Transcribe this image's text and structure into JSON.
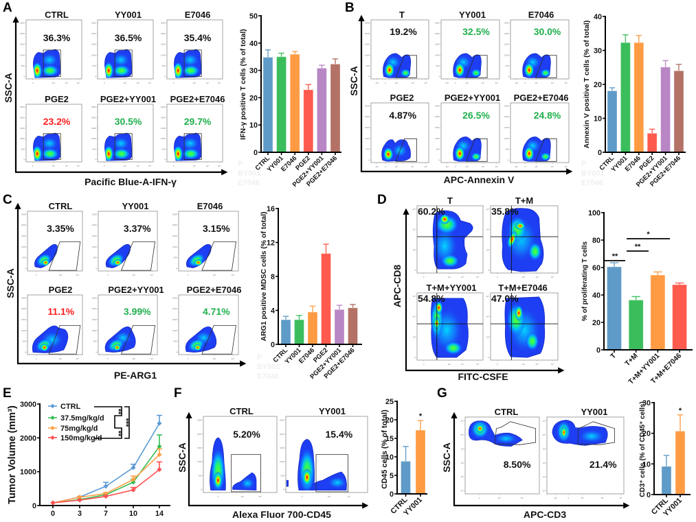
{
  "figure": {
    "panel_labels": [
      "A",
      "B",
      "C",
      "D",
      "E",
      "F",
      "G"
    ]
  },
  "flow_panels": {
    "A": {
      "y_axis_label": "SSC-A",
      "x_axis_label": "Pacific Blue-A-IFN-γ",
      "y_ticks": [
        "250K",
        "200K",
        "150K",
        "100K",
        "50K",
        "0"
      ],
      "x_ticks": [
        "0",
        "10³",
        "10⁴",
        "10⁵"
      ],
      "plots": [
        {
          "title": "CTRL",
          "percent": "36.3%",
          "percent_color": "#111111"
        },
        {
          "title": "YY001",
          "percent": "36.5%",
          "percent_color": "#111111"
        },
        {
          "title": "E7046",
          "percent": "35.4%",
          "percent_color": "#111111"
        },
        {
          "title": "PGE2",
          "percent": "23.2%",
          "percent_color": "#ff1e1e"
        },
        {
          "title": "PGE2+YY001",
          "percent": "30.5%",
          "percent_color": "#1fb04c"
        },
        {
          "title": "PGE2+E7046",
          "percent": "29.7%",
          "percent_color": "#1fb04c"
        }
      ]
    },
    "B": {
      "y_axis_label": "SSC-A",
      "x_axis_label": "APC-Annexin V",
      "y_ticks": [
        "250K",
        "200K",
        "150K",
        "100K",
        "50K",
        "0"
      ],
      "x_ticks": [
        "-10³",
        "0",
        "10³",
        "10⁴",
        "10⁵"
      ],
      "plots": [
        {
          "title": "T",
          "percent": "19.2%",
          "percent_color": "#111111"
        },
        {
          "title": "YY001",
          "percent": "32.5%",
          "percent_color": "#1fb04c"
        },
        {
          "title": "E7046",
          "percent": "30.0%",
          "percent_color": "#1fb04c"
        },
        {
          "title": "PGE2",
          "percent": "4.87%",
          "percent_color": "#111111"
        },
        {
          "title": "PGE2+YY001",
          "percent": "26.5%",
          "percent_color": "#1fb04c"
        },
        {
          "title": "PGE2+E7046",
          "percent": "24.8%",
          "percent_color": "#1fb04c"
        }
      ]
    },
    "C": {
      "y_axis_label": "SSC-A",
      "x_axis_label": "PE-ARG1",
      "y_ticks": [
        "250K",
        "200K",
        "150K",
        "100K",
        "50K",
        "0"
      ],
      "x_ticks": [
        "0",
        "10³",
        "10⁴"
      ],
      "plots": [
        {
          "title": "CTRL",
          "percent": "3.35%",
          "percent_color": "#111111"
        },
        {
          "title": "YY001",
          "percent": "3.37%",
          "percent_color": "#111111"
        },
        {
          "title": "E7046",
          "percent": "3.15%",
          "percent_color": "#111111"
        },
        {
          "title": "PGE2",
          "percent": "11.1%",
          "percent_color": "#ff1e1e"
        },
        {
          "title": "PGE2+YY001",
          "percent": "3.99%",
          "percent_color": "#1fb04c"
        },
        {
          "title": "PGE2+E7046",
          "percent": "4.71%",
          "percent_color": "#1fb04c"
        }
      ]
    },
    "D": {
      "y_axis_label": "APC-CD8",
      "x_axis_label": "FITC-CSFE",
      "y_ticks": [
        "10⁵",
        "10⁴",
        "10³",
        "0"
      ],
      "x_ticks": [
        "0",
        "10³",
        "10⁴",
        "10⁵"
      ],
      "plots": [
        {
          "title": "T",
          "percent": "60.2%",
          "percent_color": "#111111"
        },
        {
          "title": "T+M",
          "percent": "35.8%",
          "percent_color": "#111111"
        },
        {
          "title": "T+M+YY001",
          "percent": "54.8%",
          "percent_color": "#111111"
        },
        {
          "title": "T+M+E7046",
          "percent": "47.0%",
          "percent_color": "#111111"
        }
      ]
    },
    "F": {
      "y_axis_label": "SSC-A",
      "x_axis_label": "Alexa Fluor 700-CD45",
      "y_ticks": [
        "250K",
        "200K",
        "150K",
        "100K",
        "50K",
        "0"
      ],
      "x_ticks": [
        "0",
        "10³",
        "10⁴"
      ],
      "plots": [
        {
          "title": "CTRL",
          "percent": "5.20%",
          "percent_color": "#111111"
        },
        {
          "title": "YY001",
          "percent": "15.4%",
          "percent_color": "#111111"
        }
      ]
    },
    "G": {
      "y_axis_label": "SSC-A",
      "x_axis_label": "APC-CD3",
      "y_ticks": [
        "10⁵",
        "10⁴",
        "10³",
        "10²",
        "10¹",
        "10⁰"
      ],
      "x_ticks": [
        "0",
        "10³",
        "10⁴"
      ],
      "plots": [
        {
          "title": "CTRL",
          "percent": "8.50%",
          "percent_color": "#111111",
          "x_ticks": [
            "0",
            "10³",
            "10⁴"
          ]
        },
        {
          "title": "YY001",
          "percent": "21.4%",
          "percent_color": "#111111",
          "x_ticks": [
            "-10³",
            "0",
            "10³",
            "10⁴",
            "10⁵"
          ]
        }
      ]
    }
  },
  "faint_rows": [
    "P",
    "BY001",
    "E7046"
  ],
  "chart_data": [
    {
      "panel": "A",
      "type": "bar",
      "title": "",
      "xlabel": "",
      "ylabel": "IFN-γ positive T cells (% of total)",
      "categories": [
        "CTRL",
        "YY001",
        "E7046",
        "PGE2",
        "PGE2+YY001",
        "PGE2+E7046"
      ],
      "values": [
        34.8,
        35.0,
        35.9,
        22.9,
        30.8,
        32.3
      ],
      "errors": [
        2.7,
        1.3,
        1.0,
        1.9,
        1.1,
        1.9
      ],
      "colors": [
        "#5f9bc8",
        "#3bbd5c",
        "#ff9b43",
        "#ff5a4e",
        "#b886c4",
        "#b37265"
      ],
      "ylim": [
        0,
        50
      ],
      "yticks": [
        0,
        10,
        20,
        30,
        40,
        50
      ],
      "grid": false,
      "legend": "none"
    },
    {
      "panel": "B",
      "type": "bar",
      "title": "",
      "xlabel": "",
      "ylabel": "Annexin V positive T cells (% of total)",
      "categories": [
        "CTRL",
        "YY001",
        "E7046",
        "PGE2",
        "PGE2+YY001",
        "PGE2+E7046"
      ],
      "values": [
        18.1,
        32.3,
        32.3,
        5.6,
        25.1,
        24.0
      ],
      "errors": [
        0.9,
        2.3,
        2.1,
        1.2,
        1.9,
        1.9
      ],
      "colors": [
        "#5f9bc8",
        "#3bbd5c",
        "#ff9b43",
        "#ff5a4e",
        "#b886c4",
        "#b37265"
      ],
      "ylim": [
        0,
        40
      ],
      "yticks": [
        0,
        10,
        20,
        30,
        40
      ],
      "grid": false,
      "legend": "none"
    },
    {
      "panel": "C",
      "type": "bar",
      "title": "",
      "xlabel": "",
      "ylabel": "ARG1 positive MDSC cells (% of total)",
      "categories": [
        "CTRL",
        "YY001",
        "E7046",
        "PGE2",
        "PGE2+YY001",
        "PGE2+E7046"
      ],
      "values": [
        2.9,
        2.9,
        3.8,
        10.7,
        4.1,
        4.3
      ],
      "errors": [
        0.4,
        0.5,
        0.7,
        1.1,
        0.5,
        0.4
      ],
      "colors": [
        "#5f9bc8",
        "#3bbd5c",
        "#ff9b43",
        "#ff5a4e",
        "#b886c4",
        "#b37265"
      ],
      "ylim": [
        0,
        16
      ],
      "yticks": [
        0,
        4,
        8,
        12,
        16
      ],
      "grid": false,
      "legend": "none"
    },
    {
      "panel": "D",
      "type": "bar",
      "title": "",
      "xlabel": "",
      "ylabel": "% of proliferating T cells",
      "categories": [
        "T",
        "T+M",
        "T+M+YY001",
        "T+M+E7046"
      ],
      "values": [
        60.5,
        36.3,
        54.5,
        47.5
      ],
      "errors": [
        3.0,
        2.5,
        2.3,
        1.2
      ],
      "colors": [
        "#5f9bc8",
        "#3bbd5c",
        "#ff9b43",
        "#ff5a4e"
      ],
      "ylim": [
        0,
        100
      ],
      "yticks": [
        0,
        20,
        40,
        60,
        80,
        100
      ],
      "grid": false,
      "legend": "none",
      "significance": [
        {
          "from": "T",
          "to": "T+M",
          "label": "**",
          "y": 65
        },
        {
          "from": "T+M",
          "to": "T+M+YY001",
          "label": "**",
          "y": 72
        },
        {
          "from": "T+M",
          "to": "T+M+E7046",
          "label": "*",
          "y": 81
        }
      ]
    },
    {
      "panel": "E",
      "type": "line",
      "title": "",
      "xlabel": "",
      "ylabel": "Tumor Volume (mm³)",
      "x": [
        0,
        3,
        7,
        10,
        14
      ],
      "series": [
        {
          "name": "CTRL",
          "color": "#5b9bd5",
          "values": [
            80,
            250,
            570,
            1120,
            2430
          ],
          "errors": [
            0,
            20,
            115,
            100,
            235
          ]
        },
        {
          "name": "37.5mg/kg/d",
          "color": "#34bf55",
          "values": [
            80,
            175,
            320,
            690,
            1745
          ],
          "errors": [
            0,
            15,
            30,
            90,
            340
          ]
        },
        {
          "name": "75mg/kg/d",
          "color": "#ff9f45",
          "values": [
            80,
            245,
            355,
            770,
            1505
          ],
          "errors": [
            0,
            20,
            25,
            100,
            170
          ]
        },
        {
          "name": "150mg/kg/d",
          "color": "#ff5050",
          "values": [
            80,
            160,
            270,
            460,
            1065
          ],
          "errors": [
            0,
            10,
            20,
            75,
            225
          ]
        }
      ],
      "ylim": [
        0,
        3000
      ],
      "yticks": [
        0,
        1000,
        2000,
        3000
      ],
      "grid": false,
      "legend": "top-left",
      "significance": [
        {
          "between": [
            "CTRL",
            "37.5mg/kg/d"
          ],
          "label": "**"
        },
        {
          "between": [
            "75mg/kg/d",
            "150mg/kg/d"
          ],
          "label": "**"
        },
        {
          "between": [
            "CTRL",
            "150mg/kg/d"
          ],
          "label": "***"
        }
      ]
    },
    {
      "panel": "F",
      "type": "bar",
      "title": "",
      "xlabel": "",
      "ylabel": "CD45 cells (% of total)",
      "categories": [
        "CTRL",
        "YY001"
      ],
      "values": [
        8.8,
        17.2
      ],
      "errors": [
        4.0,
        2.6
      ],
      "colors": [
        "#5f9bc8",
        "#ff9b43"
      ],
      "ylim": [
        0,
        25
      ],
      "yticks": [
        0,
        5,
        10,
        15,
        20,
        25
      ],
      "grid": false,
      "legend": "none",
      "significance": [
        {
          "bar": "YY001",
          "label": "*"
        }
      ]
    },
    {
      "panel": "G",
      "type": "bar",
      "title": "",
      "xlabel": "",
      "ylabel": "CD3⁺ cells (% of CD45⁺ cells)",
      "categories": [
        "CTRL",
        "YY001"
      ],
      "values": [
        9.2,
        20.7
      ],
      "errors": [
        3.6,
        5.3
      ],
      "colors": [
        "#5f9bc8",
        "#ff9b43"
      ],
      "ylim": [
        0,
        30
      ],
      "yticks": [
        0,
        10,
        20,
        30
      ],
      "grid": false,
      "legend": "none",
      "significance": [
        {
          "bar": "YY001",
          "label": "*"
        }
      ]
    }
  ]
}
